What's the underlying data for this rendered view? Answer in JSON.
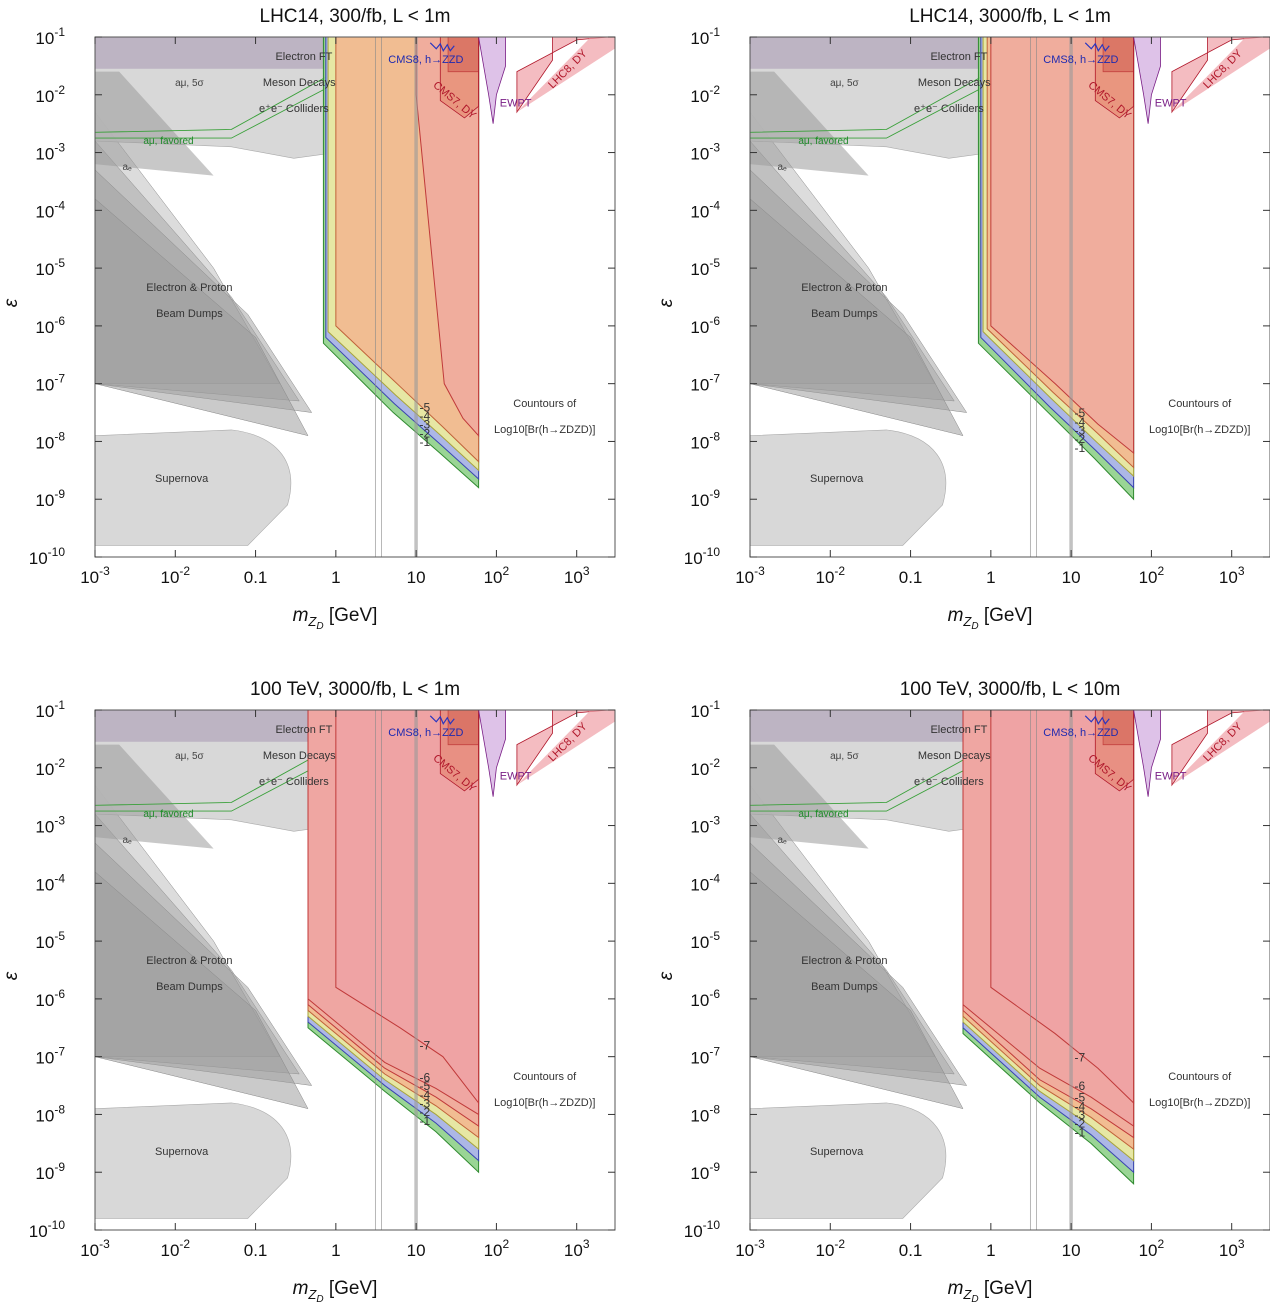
{
  "chart_data": [
    {
      "type": "area",
      "title": "LHC14, 300/fb, L < 1m",
      "xlabel_sym": "m",
      "xlabel_sub": "Z",
      "xlabel_subsub": "D",
      "xlabel_unit": "[GeV]",
      "ylabel": "ε",
      "xlim": [
        0.001,
        3000
      ],
      "ylim": [
        1e-10,
        0.1
      ],
      "xscale": "log",
      "yscale": "log",
      "x_ticks": [
        {
          "b": "10",
          "e": "-3",
          "v": 0.001
        },
        {
          "b": "10",
          "e": "-2",
          "v": 0.01
        },
        {
          "b": "0.1",
          "e": "",
          "v": 0.1
        },
        {
          "b": "1",
          "e": "",
          "v": 1
        },
        {
          "b": "10",
          "e": "",
          "v": 10
        },
        {
          "b": "10",
          "e": "2",
          "v": 100
        },
        {
          "b": "10",
          "e": "3",
          "v": 1000
        }
      ],
      "y_ticks": [
        {
          "b": "10",
          "e": "-1",
          "v": -1
        },
        {
          "b": "10",
          "e": "-2",
          "v": -2
        },
        {
          "b": "10",
          "e": "-3",
          "v": -3
        },
        {
          "b": "10",
          "e": "-4",
          "v": -4
        },
        {
          "b": "10",
          "e": "-5",
          "v": -5
        },
        {
          "b": "10",
          "e": "-6",
          "v": -6
        },
        {
          "b": "10",
          "e": "-7",
          "v": -7
        },
        {
          "b": "10",
          "e": "-8",
          "v": -8
        },
        {
          "b": "10",
          "e": "-9",
          "v": -9
        },
        {
          "b": "10",
          "e": "-10",
          "v": -10
        }
      ],
      "region_labels": {
        "electron_ft": "Electron FT",
        "a_mu": "aμ, 5σ",
        "meson": "Meson Decays",
        "ee": "e⁺e⁻ Colliders",
        "a_mu_fav": "aμ, favored",
        "a_e": "aₑ",
        "beam1": "Electron & Proton",
        "beam2": "Beam Dumps",
        "supernova": "Supernova",
        "cms8": "CMS8, h→ZZD",
        "cms7": "CMS7, DY",
        "ewpt": "EWPT",
        "lhc8": "LHC8, DY"
      },
      "contours_label": [
        "Countours of",
        "Log10[Br(h→ZDZD)]"
      ],
      "contour_levels": [
        -1,
        -2,
        -3,
        -4,
        -5
      ],
      "region_x_min_gev": [
        0.7,
        0.75,
        0.8,
        1.0,
        10.0
      ],
      "region_x_max_gev": 60,
      "contour_lower_eps_log": [
        [
          -6.3,
          -7.5,
          -8.2,
          -8.8
        ],
        [
          -6.2,
          -7.35,
          -8.05,
          -8.65
        ],
        [
          -6.1,
          -7.2,
          -7.9,
          -8.5
        ],
        [
          -6.0,
          -7.05,
          -7.75,
          -8.35
        ],
        [
          -2.0,
          -7.0,
          -7.6,
          -7.9
        ]
      ]
    },
    {
      "type": "area",
      "title": "LHC14, 3000/fb, L < 1m",
      "xlabel_sym": "m",
      "xlabel_sub": "Z",
      "xlabel_subsub": "D",
      "xlabel_unit": "[GeV]",
      "ylabel": "ε",
      "xlim": [
        0.001,
        3000
      ],
      "ylim": [
        1e-10,
        0.1
      ],
      "xscale": "log",
      "yscale": "log",
      "x_ticks": [
        {
          "b": "10",
          "e": "-3",
          "v": 0.001
        },
        {
          "b": "10",
          "e": "-2",
          "v": 0.01
        },
        {
          "b": "0.1",
          "e": "",
          "v": 0.1
        },
        {
          "b": "1",
          "e": "",
          "v": 1
        },
        {
          "b": "10",
          "e": "",
          "v": 10
        },
        {
          "b": "10",
          "e": "2",
          "v": 100
        },
        {
          "b": "10",
          "e": "3",
          "v": 1000
        }
      ],
      "y_ticks": [
        {
          "b": "10",
          "e": "-1",
          "v": -1
        },
        {
          "b": "10",
          "e": "-2",
          "v": -2
        },
        {
          "b": "10",
          "e": "-3",
          "v": -3
        },
        {
          "b": "10",
          "e": "-4",
          "v": -4
        },
        {
          "b": "10",
          "e": "-5",
          "v": -5
        },
        {
          "b": "10",
          "e": "-6",
          "v": -6
        },
        {
          "b": "10",
          "e": "-7",
          "v": -7
        },
        {
          "b": "10",
          "e": "-8",
          "v": -8
        },
        {
          "b": "10",
          "e": "-9",
          "v": -9
        },
        {
          "b": "10",
          "e": "-10",
          "v": -10
        }
      ],
      "region_labels": {
        "electron_ft": "Electron FT",
        "a_mu": "aμ, 5σ",
        "meson": "Meson Decays",
        "ee": "e⁺e⁻ Colliders",
        "a_mu_fav": "aμ, favored",
        "a_e": "aₑ",
        "beam1": "Electron & Proton",
        "beam2": "Beam Dumps",
        "supernova": "Supernova",
        "cms8": "CMS8, h→ZZD",
        "cms7": "CMS7, DY",
        "ewpt": "EWPT",
        "lhc8": "LHC8, DY"
      },
      "contours_label": [
        "Countours of",
        "Log10[Br(h→ZDZD)]"
      ],
      "contour_levels": [
        -1,
        -2,
        -3,
        -4,
        -5
      ],
      "region_x_min_gev": [
        0.7,
        0.75,
        0.8,
        0.9,
        1.0
      ],
      "region_x_max_gev": 60,
      "contour_lower_eps_log": [
        [
          -6.3,
          -7.5,
          -8.3,
          -9.0
        ],
        [
          -6.2,
          -7.4,
          -8.15,
          -8.8
        ],
        [
          -6.1,
          -7.25,
          -8.0,
          -8.6
        ],
        [
          -6.05,
          -7.15,
          -7.85,
          -8.45
        ],
        [
          -6.0,
          -7.0,
          -7.7,
          -8.2
        ]
      ]
    },
    {
      "type": "area",
      "title": "100 TeV, 3000/fb, L < 1m",
      "xlabel_sym": "m",
      "xlabel_sub": "Z",
      "xlabel_subsub": "D",
      "xlabel_unit": "[GeV]",
      "ylabel": "ε",
      "xlim": [
        0.001,
        3000
      ],
      "ylim": [
        1e-10,
        0.1
      ],
      "xscale": "log",
      "yscale": "log",
      "x_ticks": [
        {
          "b": "10",
          "e": "-3",
          "v": 0.001
        },
        {
          "b": "10",
          "e": "-2",
          "v": 0.01
        },
        {
          "b": "0.1",
          "e": "",
          "v": 0.1
        },
        {
          "b": "1",
          "e": "",
          "v": 1
        },
        {
          "b": "10",
          "e": "",
          "v": 10
        },
        {
          "b": "10",
          "e": "2",
          "v": 100
        },
        {
          "b": "10",
          "e": "3",
          "v": 1000
        }
      ],
      "y_ticks": [
        {
          "b": "10",
          "e": "-1",
          "v": -1
        },
        {
          "b": "10",
          "e": "-2",
          "v": -2
        },
        {
          "b": "10",
          "e": "-3",
          "v": -3
        },
        {
          "b": "10",
          "e": "-4",
          "v": -4
        },
        {
          "b": "10",
          "e": "-5",
          "v": -5
        },
        {
          "b": "10",
          "e": "-6",
          "v": -6
        },
        {
          "b": "10",
          "e": "-7",
          "v": -7
        },
        {
          "b": "10",
          "e": "-8",
          "v": -8
        },
        {
          "b": "10",
          "e": "-9",
          "v": -9
        },
        {
          "b": "10",
          "e": "-10",
          "v": -10
        }
      ],
      "region_labels": {
        "electron_ft": "Electron FT",
        "a_mu": "aμ, 5σ",
        "meson": "Meson Decays",
        "ee": "e⁺e⁻ Colliders",
        "a_mu_fav": "aμ, favored",
        "a_e": "aₑ",
        "beam1": "Electron & Proton",
        "beam2": "Beam Dumps",
        "supernova": "Supernova",
        "cms8": "CMS8, h→ZZD",
        "cms7": "CMS7, DY",
        "ewpt": "EWPT",
        "lhc8": "LHC8, DY"
      },
      "contours_label": [
        "Countours of",
        "Log10[Br(h→ZDZD)]"
      ],
      "contour_levels": [
        -1,
        -2,
        -3,
        -4,
        -5,
        -6,
        -7
      ],
      "region_x_min_gev": [
        0.45,
        0.45,
        0.45,
        0.45,
        0.45,
        0.45,
        1.0
      ],
      "region_x_max_gev": 60,
      "contour_lower_eps_log": [
        [
          -6.5,
          -7.6,
          -8.3,
          -9.0
        ],
        [
          -6.4,
          -7.5,
          -8.15,
          -8.8
        ],
        [
          -6.3,
          -7.4,
          -8.0,
          -8.6
        ],
        [
          -6.2,
          -7.3,
          -7.85,
          -8.4
        ],
        [
          -6.1,
          -7.2,
          -7.7,
          -8.2
        ],
        [
          -6.0,
          -7.1,
          -7.55,
          -8.0
        ],
        [
          -5.8,
          -6.5,
          -7.0,
          -7.8
        ]
      ]
    },
    {
      "type": "area",
      "title": "100 TeV, 3000/fb, L < 10m",
      "xlabel_sym": "m",
      "xlabel_sub": "Z",
      "xlabel_subsub": "D",
      "xlabel_unit": "[GeV]",
      "ylabel": "ε",
      "xlim": [
        0.001,
        3000
      ],
      "ylim": [
        1e-10,
        0.1
      ],
      "xscale": "log",
      "yscale": "log",
      "x_ticks": [
        {
          "b": "10",
          "e": "-3",
          "v": 0.001
        },
        {
          "b": "10",
          "e": "-2",
          "v": 0.01
        },
        {
          "b": "0.1",
          "e": "",
          "v": 0.1
        },
        {
          "b": "1",
          "e": "",
          "v": 1
        },
        {
          "b": "10",
          "e": "",
          "v": 10
        },
        {
          "b": "10",
          "e": "2",
          "v": 100
        },
        {
          "b": "10",
          "e": "3",
          "v": 1000
        }
      ],
      "y_ticks": [
        {
          "b": "10",
          "e": "-1",
          "v": -1
        },
        {
          "b": "10",
          "e": "-2",
          "v": -2
        },
        {
          "b": "10",
          "e": "-3",
          "v": -3
        },
        {
          "b": "10",
          "e": "-4",
          "v": -4
        },
        {
          "b": "10",
          "e": "-5",
          "v": -5
        },
        {
          "b": "10",
          "e": "-6",
          "v": -6
        },
        {
          "b": "10",
          "e": "-7",
          "v": -7
        },
        {
          "b": "10",
          "e": "-8",
          "v": -8
        },
        {
          "b": "10",
          "e": "-9",
          "v": -9
        },
        {
          "b": "10",
          "e": "-10",
          "v": -10
        }
      ],
      "region_labels": {
        "electron_ft": "Electron FT",
        "a_mu": "aμ, 5σ",
        "meson": "Meson Decays",
        "ee": "e⁺e⁻ Colliders",
        "a_mu_fav": "aμ, favored",
        "a_e": "aₑ",
        "beam1": "Electron & Proton",
        "beam2": "Beam Dumps",
        "supernova": "Supernova",
        "cms8": "CMS8, h→ZZD",
        "cms7": "CMS7, DY",
        "ewpt": "EWPT",
        "lhc8": "LHC8, DY"
      },
      "contours_label": [
        "Countours of",
        "Log10[Br(h→ZDZD)]"
      ],
      "contour_levels": [
        -1,
        -2,
        -3,
        -4,
        -5,
        -6,
        -7
      ],
      "region_x_min_gev": [
        0.45,
        0.45,
        0.45,
        0.45,
        0.45,
        0.45,
        1.0
      ],
      "region_x_max_gev": 60,
      "contour_lower_eps_log": [
        [
          -6.6,
          -7.8,
          -8.5,
          -9.2
        ],
        [
          -6.5,
          -7.7,
          -8.35,
          -9.0
        ],
        [
          -6.4,
          -7.6,
          -8.2,
          -8.8
        ],
        [
          -6.3,
          -7.5,
          -8.05,
          -8.6
        ],
        [
          -6.2,
          -7.4,
          -7.9,
          -8.4
        ],
        [
          -6.1,
          -7.2,
          -7.7,
          -8.2
        ],
        [
          -5.8,
          -6.6,
          -7.2,
          -7.8
        ]
      ]
    }
  ],
  "colors": {
    "green": "#8fd08a",
    "blue": "#aeb4ee",
    "yellow": "#ecec9c",
    "orange": "#f2b890",
    "red": "#efa0a6",
    "grey_dark": "#9a9a9a",
    "grey_light": "#d4d4d4",
    "purple_band": "#b4a8bc"
  }
}
